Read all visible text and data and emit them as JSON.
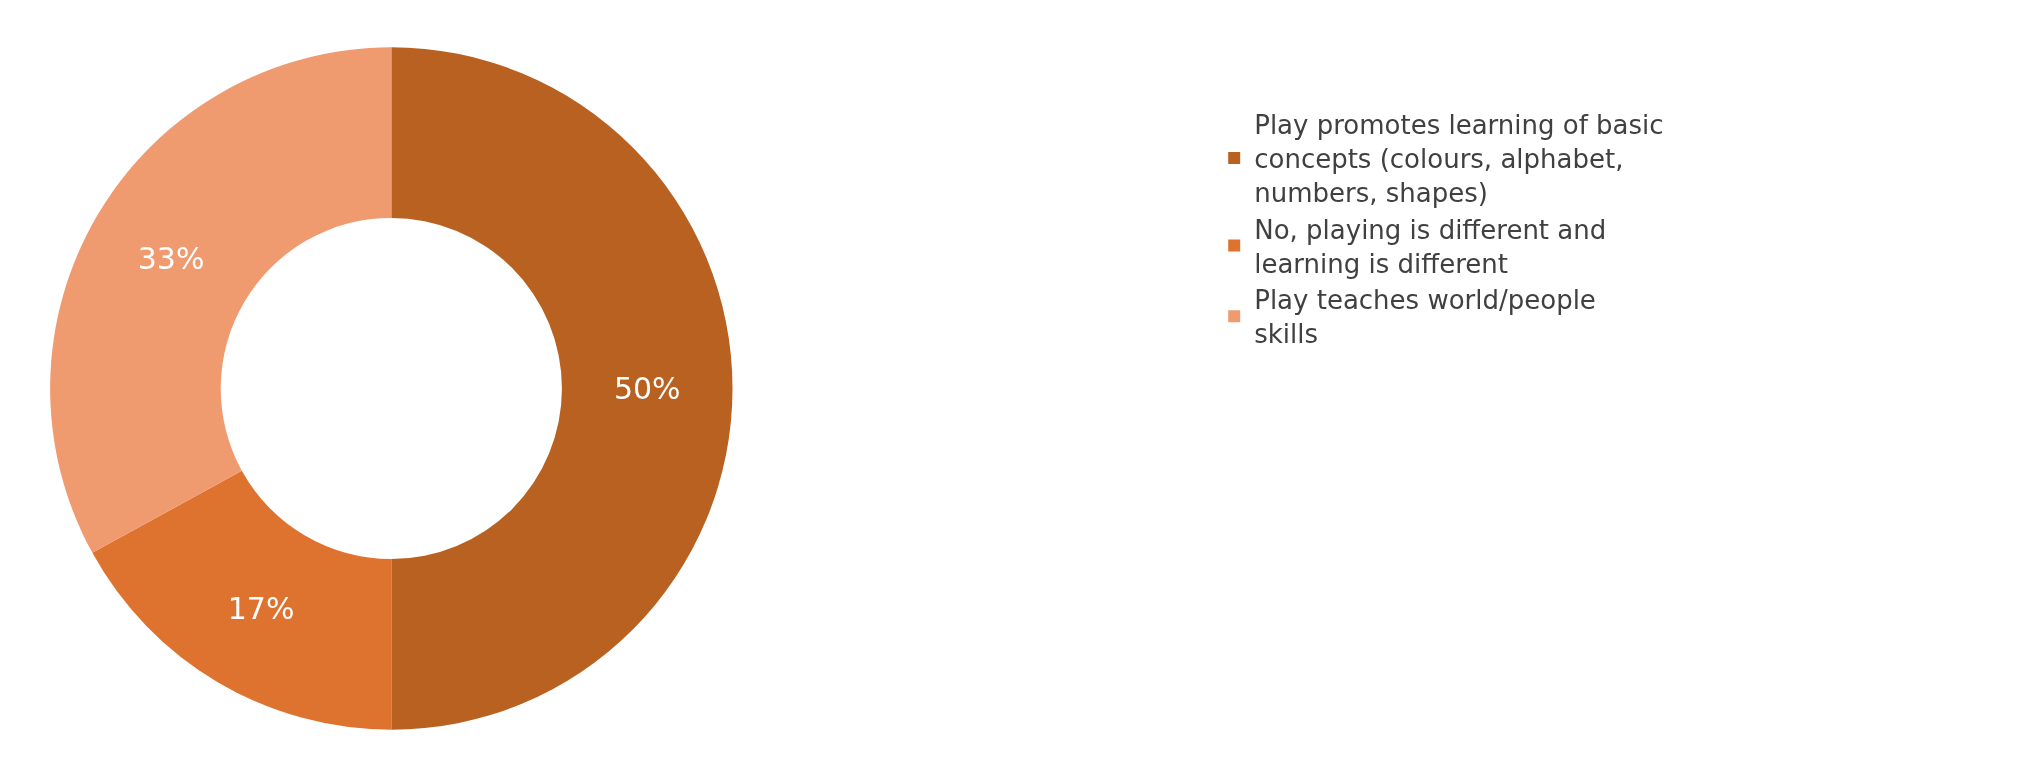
{
  "chart_data": {
    "type": "donut",
    "categories": [
      "Play promotes learning of basic concepts (colours, alphabet, numbers, shapes)",
      "No, playing is different and learning is different",
      "Play teaches world/people skills"
    ],
    "values": [
      50,
      17,
      33
    ],
    "value_labels": [
      "50%",
      "17%",
      "33%"
    ],
    "colors": [
      "#b96121",
      "#de7330",
      "#f09a70"
    ],
    "legend": "right"
  }
}
